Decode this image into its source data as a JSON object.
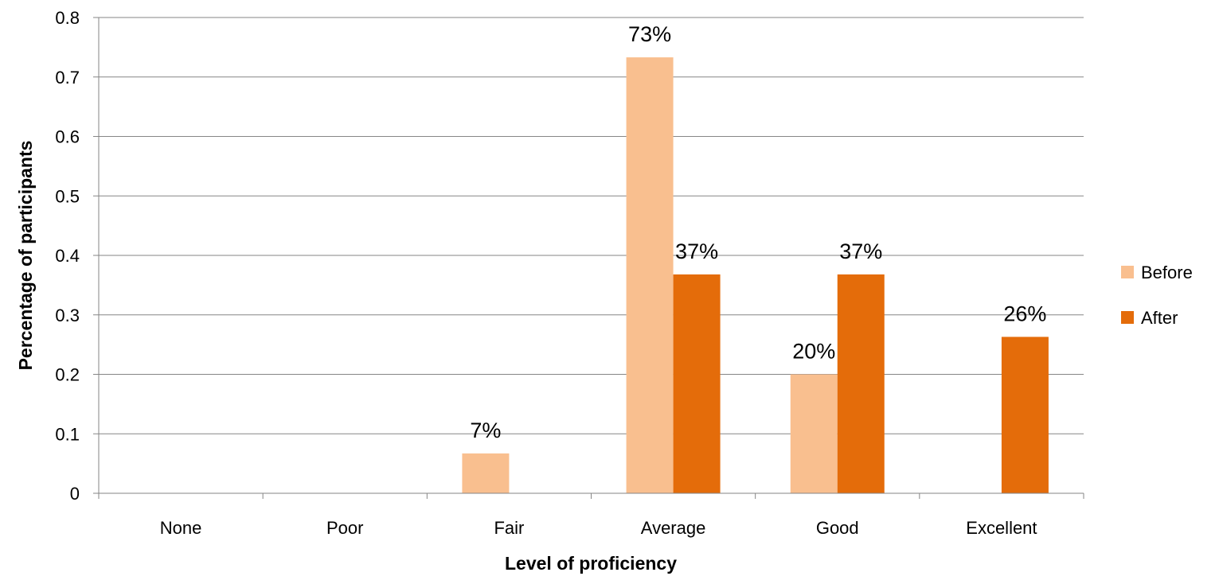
{
  "chart_data": {
    "type": "bar",
    "title": "",
    "xlabel": "Level of proficiency",
    "ylabel": "Percentage of participants",
    "categories": [
      "None",
      "Poor",
      "Fair",
      "Average",
      "Good",
      "Excellent"
    ],
    "series": [
      {
        "name": "Before",
        "color": "#F9BF8F",
        "values": [
          0,
          0,
          0.067,
          0.733,
          0.2,
          0
        ],
        "labels": [
          "",
          "",
          "7%",
          "73%",
          "20%",
          ""
        ]
      },
      {
        "name": "After",
        "color": "#E46C0A",
        "values": [
          0,
          0,
          0,
          0.368,
          0.368,
          0.263
        ],
        "labels": [
          "",
          "",
          "",
          "37%",
          "37%",
          "26%"
        ]
      }
    ],
    "yticks": [
      "0",
      "0.1",
      "0.2",
      "0.3",
      "0.4",
      "0.5",
      "0.6",
      "0.7",
      "0.8"
    ],
    "ylim": [
      0,
      0.8
    ],
    "grid": true,
    "legend_position": "right"
  }
}
